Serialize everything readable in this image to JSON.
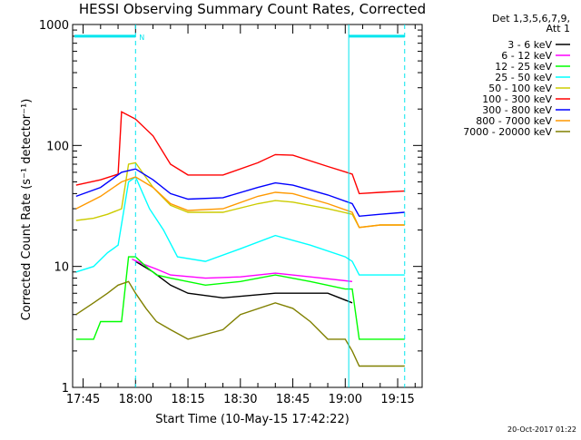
{
  "chart_data": {
    "type": "line",
    "title": "HESSI Observing Summary Count Rates, Corrected",
    "xlabel": "Start Time (10-May-15 17:42:22)",
    "ylabel": "Corrected Count Rate (s⁻¹ detector⁻¹)",
    "y_scale": "log",
    "ylim": [
      1,
      1000
    ],
    "xlim": [
      "17:42",
      "19:22"
    ],
    "x_ticks": [
      "17:45",
      "18:00",
      "18:15",
      "18:30",
      "18:45",
      "19:00",
      "19:15"
    ],
    "y_ticks": [
      "1",
      "10",
      "100",
      "1000"
    ],
    "grid": false,
    "legend_position": "right",
    "legend_header": [
      "Det 1,3,5,6,7,9,",
      "Att 1"
    ],
    "series": [
      {
        "name": "3 - 6 keV",
        "color": "#000000",
        "x": [
          "18:00",
          "18:05",
          "18:10",
          "18:15",
          "18:25",
          "18:40",
          "18:55",
          "19:02"
        ],
        "values": [
          11,
          9,
          7,
          6,
          5.5,
          6,
          6,
          5
        ]
      },
      {
        "name": "6 - 12 keV",
        "color": "#ff00ff",
        "x": [
          "17:59",
          "18:02",
          "18:06",
          "18:10",
          "18:20",
          "18:30",
          "18:40",
          "18:50",
          "19:02"
        ],
        "values": [
          11.5,
          10.5,
          9.5,
          8.5,
          8,
          8.2,
          8.8,
          8.2,
          7.5
        ]
      },
      {
        "name": "12 - 25 keV",
        "color": "#00ff00",
        "x": [
          "17:43",
          "17:48",
          "17:50",
          "17:56",
          "17:58",
          "18:00",
          "18:03",
          "18:06",
          "18:10",
          "18:20",
          "18:30",
          "18:40",
          "18:50",
          "19:00",
          "19:02",
          "19:04",
          "19:10",
          "19:17"
        ],
        "values": [
          2.5,
          2.5,
          3.5,
          3.5,
          12,
          12,
          10,
          8.5,
          8,
          7,
          7.5,
          8.5,
          7.5,
          6.5,
          6.5,
          2.5,
          2.5,
          2.5
        ]
      },
      {
        "name": "25 - 50 keV",
        "color": "#00ffff",
        "x": [
          "17:43",
          "17:48",
          "17:52",
          "17:55",
          "17:58",
          "18:00",
          "18:04",
          "18:08",
          "18:12",
          "18:20",
          "18:30",
          "18:40",
          "18:50",
          "19:00",
          "19:02",
          "19:04",
          "19:10",
          "19:17"
        ],
        "values": [
          9,
          10,
          13,
          15,
          50,
          55,
          30,
          20,
          12,
          11,
          14,
          18,
          15,
          12,
          11,
          8.5,
          8.5,
          8.5
        ]
      },
      {
        "name": "50 - 100 keV",
        "color": "#cccc00",
        "x": [
          "17:43",
          "17:48",
          "17:52",
          "17:56",
          "17:58",
          "18:00",
          "18:05",
          "18:10",
          "18:15",
          "18:25",
          "18:35",
          "18:40",
          "18:45",
          "18:55",
          "19:02",
          "19:04",
          "19:10",
          "19:17"
        ],
        "values": [
          24,
          25,
          27,
          30,
          70,
          72,
          45,
          32,
          28,
          28,
          33,
          35,
          34,
          30,
          27,
          21,
          22,
          22
        ]
      },
      {
        "name": "100 - 300 keV",
        "color": "#ff0000",
        "x": [
          "17:43",
          "17:50",
          "17:55",
          "17:56",
          "18:00",
          "18:05",
          "18:10",
          "18:15",
          "18:25",
          "18:35",
          "18:40",
          "18:45",
          "18:55",
          "19:02",
          "19:04",
          "19:10",
          "19:17"
        ],
        "values": [
          47,
          52,
          58,
          190,
          165,
          120,
          70,
          57,
          57,
          72,
          84,
          83,
          67,
          58,
          40,
          41,
          42
        ]
      },
      {
        "name": "300 - 800 keV",
        "color": "#0000ff",
        "x": [
          "17:43",
          "17:50",
          "17:56",
          "18:00",
          "18:05",
          "18:10",
          "18:15",
          "18:25",
          "18:35",
          "18:40",
          "18:45",
          "18:55",
          "19:02",
          "19:04",
          "19:10",
          "19:17"
        ],
        "values": [
          38,
          45,
          60,
          64,
          52,
          40,
          36,
          37,
          45,
          49,
          47,
          39,
          33,
          26,
          27,
          28
        ]
      },
      {
        "name": "800 - 7000 keV",
        "color": "#ff9900",
        "x": [
          "17:43",
          "17:50",
          "17:56",
          "18:00",
          "18:05",
          "18:10",
          "18:15",
          "18:25",
          "18:35",
          "18:40",
          "18:45",
          "18:55",
          "19:02",
          "19:04",
          "19:10",
          "19:17"
        ],
        "values": [
          30,
          38,
          50,
          55,
          45,
          33,
          29,
          30,
          38,
          41,
          40,
          33,
          28,
          21,
          22,
          22
        ]
      },
      {
        "name": "7000 - 20000 keV",
        "color": "#808000",
        "x": [
          "17:43",
          "17:48",
          "17:52",
          "17:55",
          "17:58",
          "18:00",
          "18:03",
          "18:06",
          "18:10",
          "18:15",
          "18:25",
          "18:30",
          "18:40",
          "18:45",
          "18:50",
          "18:55",
          "19:00",
          "19:02",
          "19:04",
          "19:17"
        ],
        "values": [
          4,
          5,
          6,
          7,
          7.5,
          6,
          4.5,
          3.5,
          3,
          2.5,
          3,
          4,
          5,
          4.5,
          3.5,
          2.5,
          2.5,
          2,
          1.5,
          1.5
        ]
      }
    ],
    "night_marker_label": "N",
    "night_intervals": [
      [
        "17:42",
        "18:00"
      ],
      [
        "19:01",
        "19:17"
      ]
    ],
    "night_level": 800,
    "timestamp": "20-Oct-2017 01:22"
  }
}
